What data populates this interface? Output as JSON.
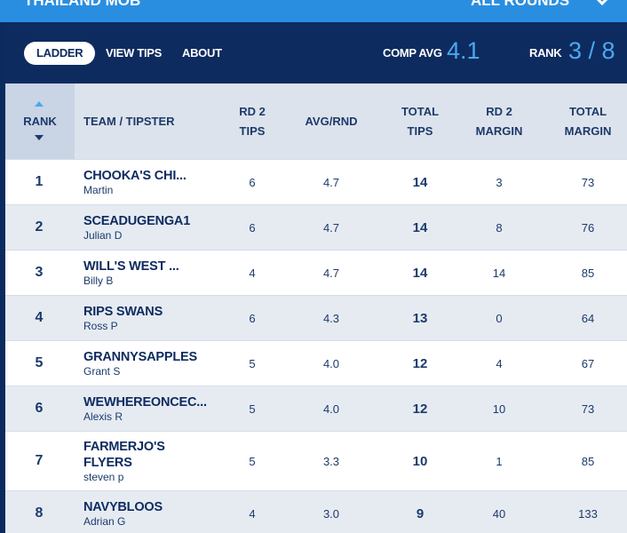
{
  "header": {
    "title": "THAILAND MOB",
    "round_select": "ALL ROUNDS"
  },
  "nav": {
    "tabs": [
      "LADDER",
      "VIEW TIPS",
      "ABOUT"
    ],
    "comp_avg_label": "COMP AVG",
    "comp_avg": "4.1",
    "rank_label": "RANK",
    "rank": "3 / 8"
  },
  "table": {
    "columns": [
      "RANK",
      "TEAM / TIPSTER",
      "RD 2 TIPS",
      "AVG/RND",
      "TOTAL TIPS",
      "RD 2 MARGIN",
      "TOTAL MARGIN"
    ],
    "rows": [
      {
        "rank": "1",
        "team": "CHOOKA'S CHI...",
        "tipster": "Martin",
        "rd_tips": "6",
        "avg": "4.7",
        "total_tips": "14",
        "rd_margin": "3",
        "total_margin": "73"
      },
      {
        "rank": "2",
        "team": "SCEADUGENGA1",
        "tipster": "Julian D",
        "rd_tips": "6",
        "avg": "4.7",
        "total_tips": "14",
        "rd_margin": "8",
        "total_margin": "76"
      },
      {
        "rank": "3",
        "team": "WILL'S WEST ...",
        "tipster": "Billy B",
        "rd_tips": "4",
        "avg": "4.7",
        "total_tips": "14",
        "rd_margin": "14",
        "total_margin": "85"
      },
      {
        "rank": "4",
        "team": "RIPS SWANS",
        "tipster": "Ross P",
        "rd_tips": "6",
        "avg": "4.3",
        "total_tips": "13",
        "rd_margin": "0",
        "total_margin": "64"
      },
      {
        "rank": "5",
        "team": "GRANNYSAPPLES",
        "tipster": "Grant S",
        "rd_tips": "5",
        "avg": "4.0",
        "total_tips": "12",
        "rd_margin": "4",
        "total_margin": "67"
      },
      {
        "rank": "6",
        "team": "WEWHEREONCEC...",
        "tipster": "Alexis R",
        "rd_tips": "5",
        "avg": "4.0",
        "total_tips": "12",
        "rd_margin": "10",
        "total_margin": "73"
      },
      {
        "rank": "7",
        "team": "FARMERJO'S FLYERS",
        "tipster": "steven p",
        "rd_tips": "5",
        "avg": "3.3",
        "total_tips": "10",
        "rd_margin": "1",
        "total_margin": "85"
      },
      {
        "rank": "8",
        "team": "NAVYBLOOS",
        "tipster": "Adrian G",
        "rd_tips": "4",
        "avg": "3.0",
        "total_tips": "9",
        "rd_margin": "40",
        "total_margin": "133"
      }
    ]
  }
}
